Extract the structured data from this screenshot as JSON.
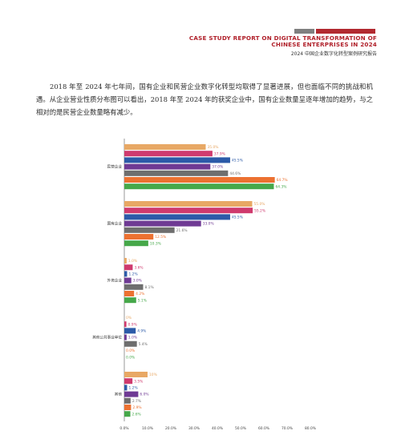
{
  "header": {
    "title_line1": "CASE STUDY REPORT ON DIGITAL TRANSFORMATION OF",
    "title_line2": "CHINESE ENTERPRISES IN 2024",
    "subtitle": "2024 中国企业数字化转型案例研究报告",
    "accent_color": "#b0202a",
    "bar_gray": "#808080",
    "bar_red": "#b22a30"
  },
  "body": {
    "paragraph": "2018 年至 2024 年七年间，国有企业和民营企业数字化转型均取得了显著进展，但也面临不同的挑战和机遇。从企业营业性质分布图可以看出，2018 年至 2024 年的获奖企业中，国有企业数量呈逐年增加的趋势，与之相对的是民营企业数量略有减少。"
  },
  "chart_data": {
    "type": "bar",
    "orientation": "horizontal",
    "categories": [
      "民营企业",
      "国有企业",
      "外资企业",
      "其他公共事业单位",
      "其他"
    ],
    "series": [
      {
        "color": "#e8a865",
        "values": [
          35.0,
          55.0,
          1.0,
          0.0,
          10.0
        ],
        "labels": [
          "35.0%",
          "55.0%",
          "1.0%",
          "0%",
          "10%"
        ]
      },
      {
        "color": "#cf3a6e",
        "values": [
          37.9,
          55.2,
          3.6,
          0.9,
          3.5
        ],
        "labels": [
          "37.9%",
          "55.2%",
          "3.6%",
          "0.9%",
          "3.5%"
        ]
      },
      {
        "color": "#2c5aa8",
        "values": [
          45.5,
          45.5,
          1.2,
          4.9,
          1.2
        ],
        "labels": [
          "45.5%",
          "45.5%",
          "1.2%",
          "4.9%",
          "1.2%"
        ]
      },
      {
        "color": "#6f3a94",
        "values": [
          37.0,
          33.0,
          3.0,
          1.0,
          6.0
        ],
        "labels": [
          "37.0%",
          "33.0%",
          "3.0%",
          "1.0%",
          "6.0%"
        ]
      },
      {
        "color": "#6e6e6e",
        "values": [
          44.6,
          21.6,
          8.1,
          5.4,
          2.7
        ],
        "labels": [
          "44.6%",
          "21.6%",
          "8.1%",
          "5.4%",
          "2.7%"
        ]
      },
      {
        "color": "#ec7131",
        "values": [
          64.7,
          12.5,
          4.2,
          0.0,
          2.9
        ],
        "labels": [
          "64.7%",
          "12.5%",
          "4.2%",
          "0.0%",
          "2.9%"
        ]
      },
      {
        "color": "#46a84a",
        "values": [
          64.3,
          10.3,
          5.1,
          0.0,
          2.6
        ],
        "labels": [
          "64.3%",
          "10.3%",
          "5.1%",
          "0.0%",
          "2.6%"
        ]
      }
    ],
    "xlim": [
      0,
      80
    ],
    "xticks": [
      "0.0%",
      "10.0%",
      "20.0%",
      "30.0%",
      "40.0%",
      "50.0%",
      "60.0%",
      "70.0%",
      "80.0%"
    ],
    "grid": false
  }
}
